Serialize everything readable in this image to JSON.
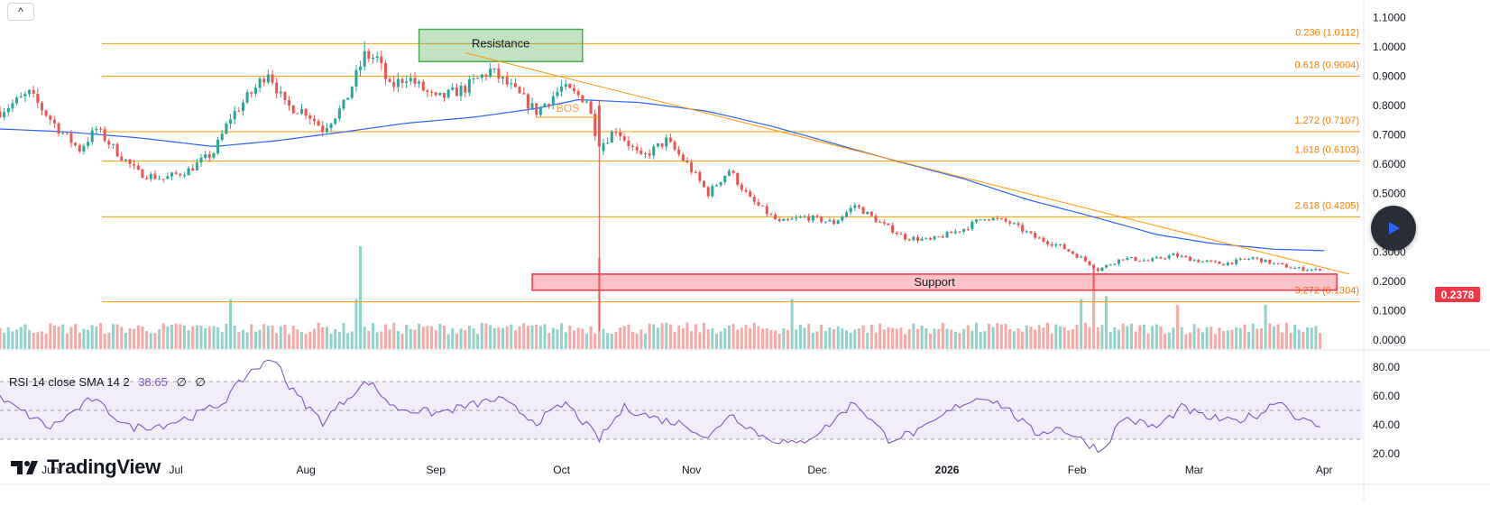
{
  "ui": {
    "collapse_icon": "chevron-up-icon",
    "logo_text": "TradingView",
    "play_icon": "play-icon",
    "current_price": "0.2378",
    "rsi_legend": {
      "label": "RSI 14 close SMA 14 2",
      "value": "38.65",
      "extra1": "∅",
      "extra2": "∅"
    }
  },
  "colors": {
    "bull": "#26a69a",
    "bear": "#ef5350",
    "fib": "#ff9800",
    "fib_text": "#f57c00",
    "sma": "#2962ff",
    "rsi": "#7e57c2",
    "resistance": "#4caf50",
    "support": "#f23645",
    "price_tag": "#f23645"
  },
  "chart_data": [
    {
      "type": "candlestick",
      "title": "",
      "series_name": "",
      "y_axis": {
        "range": [
          -0.01,
          1.12
        ],
        "ticks": [
          "1.1000",
          "1.0000",
          "0.9000",
          "0.8000",
          "0.7000",
          "0.6000",
          "0.5000",
          "0.4000",
          "0.3000",
          "0.2000",
          "0.1000",
          "0.0000"
        ]
      },
      "x_axis": {
        "range": [
          "2025-05-20",
          "2026-04-10"
        ],
        "labels": [
          {
            "text": "Jun",
            "date": "2025-06-01"
          },
          {
            "text": "Jul",
            "date": "2025-07-01"
          },
          {
            "text": "Aug",
            "date": "2025-08-01"
          },
          {
            "text": "Sep",
            "date": "2025-09-01"
          },
          {
            "text": "Oct",
            "date": "2025-10-01"
          },
          {
            "text": "Nov",
            "date": "2025-11-01"
          },
          {
            "text": "Dec",
            "date": "2025-12-01"
          },
          {
            "text": "2026",
            "date": "2026-01-01"
          },
          {
            "text": "Feb",
            "date": "2026-02-01"
          },
          {
            "text": "Mar",
            "date": "2026-03-01"
          },
          {
            "text": "Apr",
            "date": "2026-04-01"
          }
        ]
      },
      "grid": false,
      "close_anchors": [
        [
          "2025-05-20",
          0.78
        ],
        [
          "2025-05-27",
          0.84
        ],
        [
          "2025-06-03",
          0.72
        ],
        [
          "2025-06-08",
          0.65
        ],
        [
          "2025-06-12",
          0.72
        ],
        [
          "2025-06-17",
          0.64
        ],
        [
          "2025-06-22",
          0.57
        ],
        [
          "2025-06-28",
          0.55
        ],
        [
          "2025-07-04",
          0.58
        ],
        [
          "2025-07-10",
          0.64
        ],
        [
          "2025-07-14",
          0.76
        ],
        [
          "2025-07-20",
          0.86
        ],
        [
          "2025-07-23",
          0.92
        ],
        [
          "2025-07-27",
          0.8
        ],
        [
          "2025-08-01",
          0.78
        ],
        [
          "2025-08-05",
          0.72
        ],
        [
          "2025-08-10",
          0.8
        ],
        [
          "2025-08-15",
          0.97
        ],
        [
          "2025-08-18",
          0.96
        ],
        [
          "2025-08-21",
          0.86
        ],
        [
          "2025-08-25",
          0.9
        ],
        [
          "2025-09-01",
          0.82
        ],
        [
          "2025-09-08",
          0.86
        ],
        [
          "2025-09-14",
          0.92
        ],
        [
          "2025-09-19",
          0.86
        ],
        [
          "2025-09-25",
          0.78
        ],
        [
          "2025-10-01",
          0.86
        ],
        [
          "2025-10-07",
          0.82
        ],
        [
          "2025-10-10",
          0.66
        ],
        [
          "2025-10-14",
          0.72
        ],
        [
          "2025-10-20",
          0.62
        ],
        [
          "2025-10-26",
          0.68
        ],
        [
          "2025-10-31",
          0.6
        ],
        [
          "2025-11-05",
          0.5
        ],
        [
          "2025-11-10",
          0.58
        ],
        [
          "2025-11-15",
          0.48
        ],
        [
          "2025-11-22",
          0.4
        ],
        [
          "2025-11-28",
          0.42
        ],
        [
          "2025-12-05",
          0.4
        ],
        [
          "2025-12-10",
          0.46
        ],
        [
          "2025-12-16",
          0.4
        ],
        [
          "2025-12-22",
          0.35
        ],
        [
          "2025-12-28",
          0.34
        ],
        [
          "2026-01-05",
          0.38
        ],
        [
          "2026-01-10",
          0.42
        ],
        [
          "2026-01-16",
          0.4
        ],
        [
          "2026-01-22",
          0.35
        ],
        [
          "2026-01-28",
          0.32
        ],
        [
          "2026-02-02",
          0.28
        ],
        [
          "2026-02-06",
          0.24
        ],
        [
          "2026-02-12",
          0.28
        ],
        [
          "2026-02-18",
          0.27
        ],
        [
          "2026-02-24",
          0.29
        ],
        [
          "2026-03-02",
          0.27
        ],
        [
          "2026-03-08",
          0.26
        ],
        [
          "2026-03-15",
          0.28
        ],
        [
          "2026-03-20",
          0.26
        ],
        [
          "2026-03-25",
          0.245
        ],
        [
          "2026-03-31",
          0.2378
        ]
      ],
      "sma_anchors": [
        [
          "2025-05-20",
          0.72
        ],
        [
          "2025-06-05",
          0.71
        ],
        [
          "2025-06-22",
          0.69
        ],
        [
          "2025-07-10",
          0.66
        ],
        [
          "2025-07-25",
          0.68
        ],
        [
          "2025-08-10",
          0.71
        ],
        [
          "2025-08-25",
          0.74
        ],
        [
          "2025-09-10",
          0.76
        ],
        [
          "2025-09-25",
          0.79
        ],
        [
          "2025-10-05",
          0.82
        ],
        [
          "2025-10-20",
          0.81
        ],
        [
          "2025-11-05",
          0.78
        ],
        [
          "2025-11-20",
          0.73
        ],
        [
          "2025-12-05",
          0.67
        ],
        [
          "2025-12-20",
          0.61
        ],
        [
          "2026-01-05",
          0.55
        ],
        [
          "2026-01-20",
          0.48
        ],
        [
          "2026-02-05",
          0.42
        ],
        [
          "2026-02-20",
          0.36
        ],
        [
          "2026-03-05",
          0.33
        ],
        [
          "2026-03-20",
          0.31
        ],
        [
          "2026-04-01",
          0.305
        ]
      ],
      "volume_spikes": [
        [
          "2025-08-14",
          0.32
        ],
        [
          "2025-10-10",
          0.28
        ],
        [
          "2026-02-05",
          0.26
        ],
        [
          "2025-07-14",
          0.14
        ],
        [
          "2025-08-13",
          0.14
        ],
        [
          "2025-11-25",
          0.14
        ],
        [
          "2026-02-02",
          0.14
        ],
        [
          "2026-02-08",
          0.15
        ],
        [
          "2026-02-25",
          0.12
        ],
        [
          "2026-03-18",
          0.12
        ]
      ],
      "fib_levels": [
        {
          "label": "0.236 (1.0112)",
          "value": 1.0112
        },
        {
          "label": "0.618 (0.9004)",
          "value": 0.9004
        },
        {
          "label": "1.272 (0.7107)",
          "value": 0.7107
        },
        {
          "label": "1.618 (0.6103)",
          "value": 0.6103
        },
        {
          "label": "2.618 (0.4205)",
          "value": 0.4205
        },
        {
          "label": "3.272 (0.1304)",
          "value": 0.1304
        }
      ],
      "trendline": {
        "from": [
          "2025-09-08",
          0.98
        ],
        "to": [
          "2026-04-07",
          0.225
        ]
      },
      "resistance": {
        "label": "Resistance",
        "from_date": "2025-08-28",
        "to_date": "2025-10-06",
        "y_top": 1.06,
        "y_bottom": 0.95
      },
      "support": {
        "label": "Support",
        "from_date": "2025-09-24",
        "to_date": "2026-04-04",
        "y_top": 0.225,
        "y_bottom": 0.17
      },
      "bos": {
        "label": "BOS",
        "from_date": "2025-09-25",
        "to_date": "2025-10-10",
        "value": 0.76
      }
    },
    {
      "type": "line",
      "title": "RSI 14 close SMA 14 2",
      "y_axis": {
        "range": [
          14,
          88
        ],
        "ticks": [
          "80.00",
          "60.00",
          "40.00",
          "20.00"
        ]
      },
      "bands": {
        "upper": 70,
        "middle": 50,
        "lower": 30
      },
      "rsi_anchors": [
        [
          "2025-05-20",
          58
        ],
        [
          "2025-06-01",
          38
        ],
        [
          "2025-06-11",
          58
        ],
        [
          "2025-06-20",
          38
        ],
        [
          "2025-06-28",
          40
        ],
        [
          "2025-07-05",
          46
        ],
        [
          "2025-07-12",
          55
        ],
        [
          "2025-07-19",
          78
        ],
        [
          "2025-07-25",
          86
        ],
        [
          "2025-07-28",
          66
        ],
        [
          "2025-08-05",
          42
        ],
        [
          "2025-08-12",
          62
        ],
        [
          "2025-08-16",
          70
        ],
        [
          "2025-08-22",
          52
        ],
        [
          "2025-09-01",
          48
        ],
        [
          "2025-09-10",
          54
        ],
        [
          "2025-09-16",
          58
        ],
        [
          "2025-09-25",
          42
        ],
        [
          "2025-10-02",
          55
        ],
        [
          "2025-10-10",
          30
        ],
        [
          "2025-10-16",
          52
        ],
        [
          "2025-10-24",
          44
        ],
        [
          "2025-10-31",
          40
        ],
        [
          "2025-11-05",
          30
        ],
        [
          "2025-11-10",
          48
        ],
        [
          "2025-11-18",
          32
        ],
        [
          "2025-11-26",
          26
        ],
        [
          "2025-12-03",
          38
        ],
        [
          "2025-12-10",
          56
        ],
        [
          "2025-12-18",
          30
        ],
        [
          "2025-12-26",
          36
        ],
        [
          "2026-01-04",
          54
        ],
        [
          "2026-01-10",
          60
        ],
        [
          "2026-01-15",
          52
        ],
        [
          "2026-01-22",
          34
        ],
        [
          "2026-01-28",
          38
        ],
        [
          "2026-02-03",
          28
        ],
        [
          "2026-02-07",
          22
        ],
        [
          "2026-02-12",
          45
        ],
        [
          "2026-02-20",
          38
        ],
        [
          "2026-02-26",
          52
        ],
        [
          "2026-03-03",
          46
        ],
        [
          "2026-03-10",
          42
        ],
        [
          "2026-03-17",
          48
        ],
        [
          "2026-03-21",
          58
        ],
        [
          "2026-03-26",
          44
        ],
        [
          "2026-03-31",
          38.65
        ]
      ]
    }
  ]
}
